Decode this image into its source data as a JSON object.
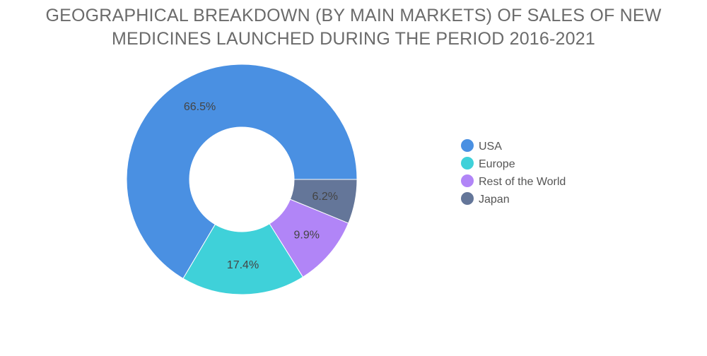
{
  "chart_data": {
    "type": "pie",
    "title_lines": [
      "GEOGRAPHICAL BREAKDOWN (BY MAIN MARKETS) OF SALES OF NEW",
      "MEDICINES LAUNCHED DURING THE PERIOD 2016-2021"
    ],
    "donut": true,
    "legend_position": "right",
    "slices": [
      {
        "name": "USA",
        "value": 66.5,
        "label": "66.5%",
        "color": "#4a90e2"
      },
      {
        "name": "Europe",
        "value": 17.4,
        "label": "17.4%",
        "color": "#3fd1d9"
      },
      {
        "name": "Rest of the World",
        "value": 9.9,
        "label": "9.9%",
        "color": "#b185f7"
      },
      {
        "name": "Japan",
        "value": 6.2,
        "label": "6.2%",
        "color": "#647699"
      }
    ],
    "legend_order": [
      0,
      1,
      2,
      3
    ]
  }
}
